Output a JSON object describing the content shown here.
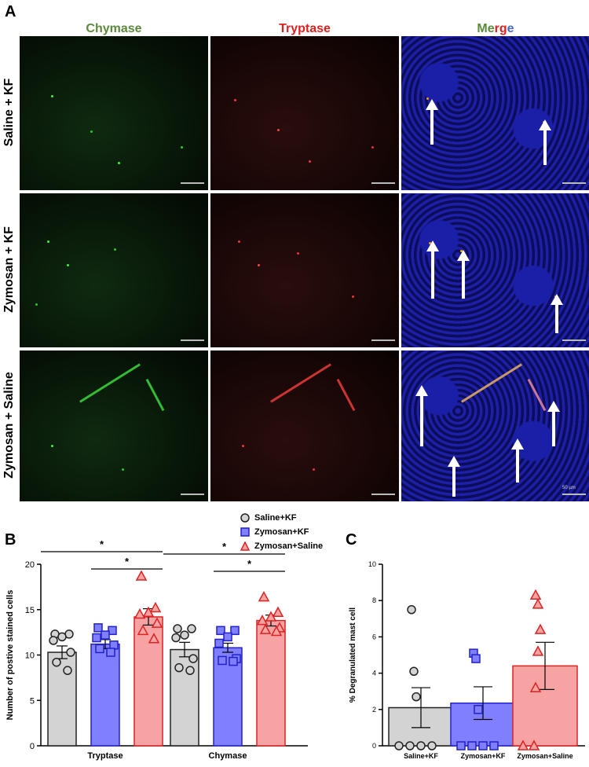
{
  "panel_a": {
    "letter": "A",
    "columns": [
      {
        "label": "Chymase",
        "color": "#5a8a3a"
      },
      {
        "label": "Tryptase",
        "color": "#e02020"
      },
      {
        "label_parts": [
          {
            "text": "Me",
            "color": "#5a8a3a"
          },
          {
            "text": "rg",
            "color": "#e02020"
          },
          {
            "text": "e",
            "color": "#4a6ad0"
          }
        ]
      }
    ],
    "rows": [
      "Saline + KF",
      "Zymosan + KF",
      "Zymosan + Saline"
    ],
    "scale_text": "50 µm"
  },
  "panel_b": {
    "letter": "B",
    "legend": [
      {
        "label": "Saline+KF",
        "marker": "circle",
        "color": "#d3d3d3"
      },
      {
        "label": "Zymosan+KF",
        "marker": "square",
        "color": "#7f7fff"
      },
      {
        "label": "Zymosan+Saline",
        "marker": "triangle",
        "color": "#f7a3a3"
      }
    ]
  },
  "panel_c": {
    "letter": "C"
  },
  "chart_data": [
    {
      "type": "bar",
      "ylabel": "Number of postive stained cells",
      "ylim": [
        0,
        20
      ],
      "yticks": [
        0,
        5,
        10,
        15,
        20
      ],
      "categories": [
        "Tryptase",
        "Chymase"
      ],
      "series": [
        {
          "name": "Saline+KF",
          "color": "#d3d3d3",
          "edge": "#222222",
          "values": [
            10.3,
            10.6
          ],
          "sem": [
            0.7,
            0.8
          ],
          "points": [
            [
              12.3,
              12.3,
              12.0,
              11.6,
              10.3,
              9.2,
              8.3
            ],
            [
              12.9,
              12.9,
              12.2,
              11.9,
              9.6,
              8.6,
              8.3
            ]
          ]
        },
        {
          "name": "Zymosan+KF",
          "color": "#7f7fff",
          "edge": "#2222cc",
          "values": [
            11.2,
            10.8
          ],
          "sem": [
            0.5,
            0.5
          ],
          "points": [
            [
              13.0,
              12.7,
              12.2,
              11.9,
              11.1,
              10.7,
              10.3
            ],
            [
              12.7,
              12.7,
              12.0,
              11.3,
              9.6,
              9.4,
              9.3
            ]
          ]
        },
        {
          "name": "Zymosan+Saline",
          "color": "#f7a3a3",
          "edge": "#dd2222",
          "values": [
            14.2,
            13.8
          ],
          "sem": [
            0.9,
            0.6
          ],
          "points": [
            [
              18.7,
              15.2,
              14.7,
              14.5,
              13.5,
              12.7,
              11.8
            ],
            [
              16.4,
              14.7,
              14.2,
              13.8,
              13.0,
              12.8,
              12.6
            ]
          ]
        }
      ],
      "significance": [
        {
          "category": "Tryptase",
          "from": 0,
          "to": 2,
          "label": "*"
        },
        {
          "category": "Tryptase",
          "from": 1,
          "to": 2,
          "label": "*"
        },
        {
          "category": "Chymase",
          "from": 0,
          "to": 2,
          "label": "*"
        },
        {
          "category": "Chymase",
          "from": 1,
          "to": 2,
          "label": "*"
        }
      ]
    },
    {
      "type": "bar",
      "ylabel": "% Degranulated mast cell",
      "ylim": [
        0,
        10
      ],
      "yticks": [
        0,
        2,
        4,
        6,
        8,
        10
      ],
      "categories": [
        "Saline+KF",
        "Zymosan+KF",
        "Zymosan+Saline"
      ],
      "values": [
        2.1,
        2.35,
        4.4
      ],
      "sem": [
        1.1,
        0.9,
        1.3
      ],
      "colors": [
        "#d3d3d3",
        "#7f7fff",
        "#f7a3a3"
      ],
      "edges": [
        "#222222",
        "#2222cc",
        "#dd2222"
      ],
      "markers": [
        "circle",
        "square",
        "triangle"
      ],
      "points": [
        [
          7.5,
          4.1,
          2.7,
          0,
          0,
          0,
          0
        ],
        [
          5.1,
          4.8,
          2.0,
          0,
          0,
          0,
          0
        ],
        [
          8.3,
          7.8,
          6.4,
          5.2,
          3.2,
          0,
          0
        ]
      ]
    }
  ]
}
